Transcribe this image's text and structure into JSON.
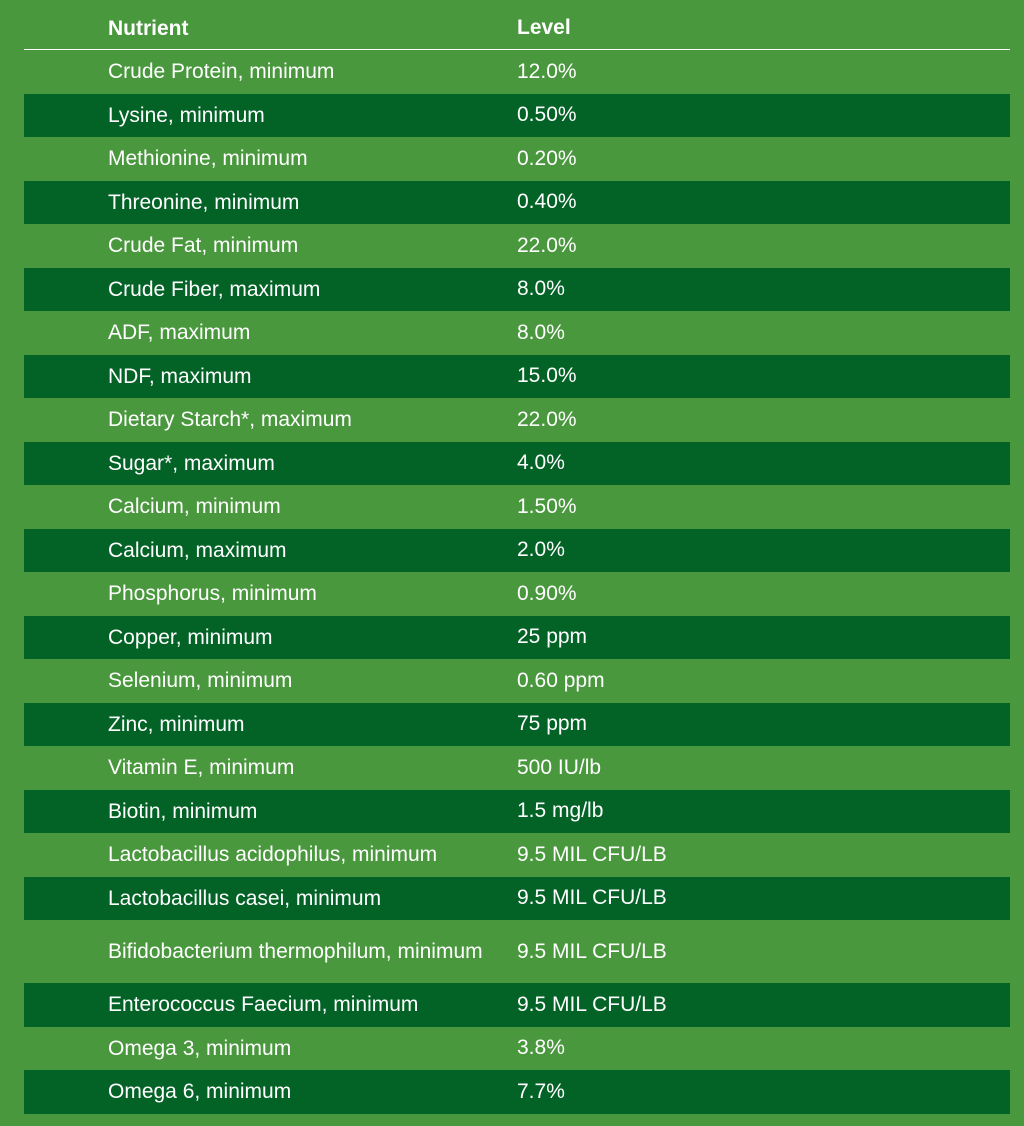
{
  "table": {
    "headers": {
      "nutrient": "Nutrient",
      "level": "Level"
    },
    "rows": [
      {
        "nutrient": "Crude Protein, minimum",
        "level": "12.0%"
      },
      {
        "nutrient": "Lysine, minimum",
        "level": "0.50%"
      },
      {
        "nutrient": "Methionine, minimum",
        "level": "0.20%"
      },
      {
        "nutrient": "Threonine, minimum",
        "level": "0.40%"
      },
      {
        "nutrient": "Crude Fat, minimum",
        "level": "22.0%"
      },
      {
        "nutrient": "Crude Fiber, maximum",
        "level": "8.0%"
      },
      {
        "nutrient": "ADF, maximum",
        "level": "8.0%"
      },
      {
        "nutrient": "NDF, maximum",
        "level": "15.0%"
      },
      {
        "nutrient": "Dietary Starch*, maximum",
        "level": "22.0%"
      },
      {
        "nutrient": "Sugar*, maximum",
        "level": "4.0%"
      },
      {
        "nutrient": "Calcium, minimum",
        "level": "1.50%"
      },
      {
        "nutrient": "Calcium, maximum",
        "level": "2.0%"
      },
      {
        "nutrient": "Phosphorus, minimum",
        "level": "0.90%"
      },
      {
        "nutrient": "Copper, minimum",
        "level": "25 ppm"
      },
      {
        "nutrient": "Selenium, minimum",
        "level": "0.60 ppm"
      },
      {
        "nutrient": "Zinc, minimum",
        "level": "75 ppm"
      },
      {
        "nutrient": "Vitamin E, minimum",
        "level": "500 IU/lb"
      },
      {
        "nutrient": "Biotin, minimum",
        "level": "1.5 mg/lb"
      },
      {
        "nutrient": "Lactobacillus acidophilus, minimum",
        "level": "9.5 MIL CFU/LB"
      },
      {
        "nutrient": "Lactobacillus casei, minimum",
        "level": "9.5 MIL CFU/LB"
      },
      {
        "nutrient": "Bifidobacterium thermophilum, minimum",
        "level": "9.5 MIL CFU/LB"
      },
      {
        "nutrient": "Enterococcus Faecium, minimum",
        "level": "9.5 MIL CFU/LB"
      },
      {
        "nutrient": "Omega 3, minimum",
        "level": "3.8%"
      },
      {
        "nutrient": "Omega 6, minimum",
        "level": "7.7%"
      }
    ]
  },
  "colors": {
    "background": "#4a983e",
    "dark_row": "#036327",
    "text": "#ffffff"
  }
}
